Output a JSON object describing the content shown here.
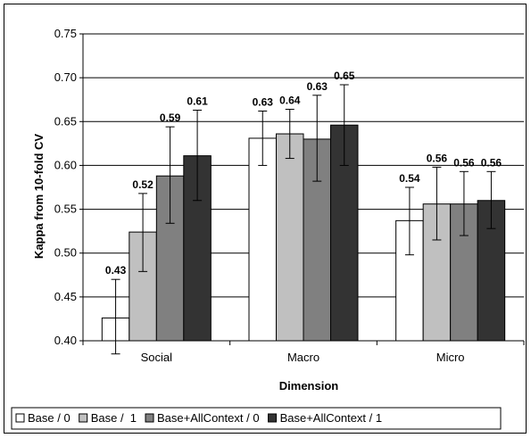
{
  "chart_data": {
    "type": "bar",
    "title": "",
    "xlabel": "Dimension",
    "ylabel": "Kappa from 10-fold CV",
    "categories": [
      "Social",
      "Macro",
      "Micro"
    ],
    "ylim": [
      0.4,
      0.75
    ],
    "yticks": [
      0.4,
      0.45,
      0.5,
      0.55,
      0.6,
      0.65,
      0.7,
      0.75
    ],
    "ytick_labels": [
      "0.40",
      "0.45",
      "0.50",
      "0.55",
      "0.60",
      "0.65",
      "0.70",
      "0.75"
    ],
    "grid": "horizontal",
    "legend_position": "bottom",
    "error_bars": true,
    "series": [
      {
        "name": "Base / 0",
        "color": "#ffffff",
        "values": [
          0.426,
          0.631,
          0.537
        ],
        "labels": [
          "0.43",
          "0.63",
          "0.54"
        ],
        "err_low": [
          0.385,
          0.6,
          0.498
        ],
        "err_high": [
          0.47,
          0.662,
          0.575
        ]
      },
      {
        "name": "Base /  1",
        "color": "#c0c0c0",
        "values": [
          0.524,
          0.636,
          0.556
        ],
        "labels": [
          "0.52",
          "0.64",
          "0.56"
        ],
        "err_low": [
          0.479,
          0.608,
          0.515
        ],
        "err_high": [
          0.568,
          0.664,
          0.598
        ]
      },
      {
        "name": "Base+AllContext / 0",
        "color": "#808080",
        "values": [
          0.588,
          0.63,
          0.556
        ],
        "labels": [
          "0.59",
          "0.63",
          "0.56"
        ],
        "err_low": [
          0.534,
          0.582,
          0.52
        ],
        "err_high": [
          0.644,
          0.68,
          0.593
        ]
      },
      {
        "name": "Base+AllContext / 1",
        "color": "#333333",
        "values": [
          0.611,
          0.646,
          0.56
        ],
        "labels": [
          "0.61",
          "0.65",
          "0.56"
        ],
        "err_low": [
          0.56,
          0.6,
          0.528
        ],
        "err_high": [
          0.663,
          0.692,
          0.593
        ]
      }
    ]
  }
}
